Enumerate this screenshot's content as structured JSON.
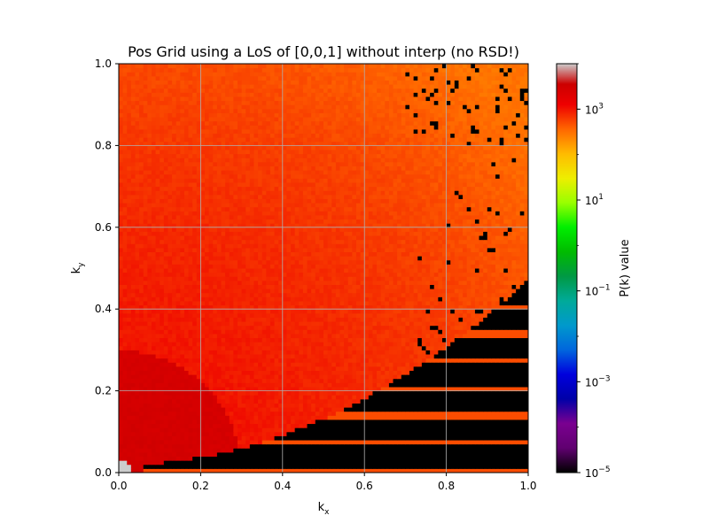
{
  "chart_data": {
    "type": "heatmap",
    "title": "Pos Grid using a LoS of [0,0,1] without interp (no RSD!)",
    "xlabel": "k",
    "xlabel_sub": "x",
    "ylabel": "k",
    "ylabel_sub": "y",
    "xlim": [
      0.0,
      1.0
    ],
    "ylim": [
      0.0,
      1.0
    ],
    "xticks": [
      0.0,
      0.2,
      0.4,
      0.6,
      0.8,
      1.0
    ],
    "yticks": [
      0.0,
      0.2,
      0.4,
      0.6,
      0.8,
      1.0
    ],
    "xtick_labels": [
      "0.0",
      "0.2",
      "0.4",
      "0.6",
      "0.8",
      "1.0"
    ],
    "ytick_labels": [
      "0.0",
      "0.2",
      "0.4",
      "0.6",
      "0.8",
      "1.0"
    ],
    "grid": true,
    "grid_cells": 100,
    "colormap": "nipy_spectral",
    "color_scale": "log",
    "colorbar": {
      "label": "P(k) value",
      "range": [
        1e-05,
        10000.0
      ],
      "ticks": [
        {
          "base": "10",
          "exp": "3",
          "value": 1000
        },
        {
          "base": "10",
          "exp": "1",
          "value": 10
        },
        {
          "base": "10",
          "exp": "−1",
          "value": 0.1
        },
        {
          "base": "10",
          "exp": "−3",
          "value": 0.001
        },
        {
          "base": "10",
          "exp": "−5",
          "value": 1e-05
        }
      ]
    },
    "field_description": {
      "low_k_value": 3000,
      "mid_value": 1000,
      "high_k_value": 300,
      "zero_value": 1e-05,
      "origin_peak": 10000
    }
  }
}
